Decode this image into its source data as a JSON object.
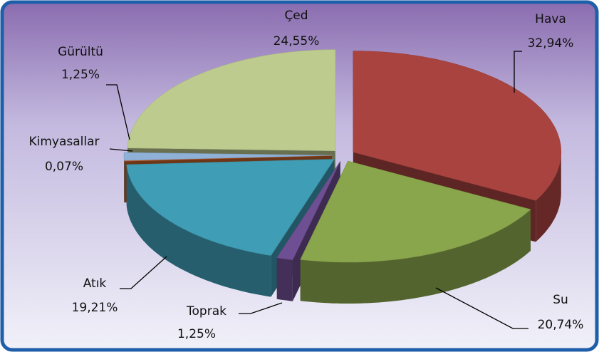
{
  "chart_data": {
    "type": "pie3d",
    "categories": [
      "Hava",
      "Su",
      "Toprak",
      "Atık",
      "Kimyasallar",
      "Gürültü",
      "Çed"
    ],
    "values": [
      32.94,
      20.74,
      1.25,
      19.21,
      0.07,
      1.25,
      24.55
    ],
    "value_labels": [
      "32,94%",
      "20,74%",
      "1,25%",
      "19,21%",
      "0,07%",
      "1,25%",
      "24,55%"
    ],
    "colors": [
      "#a9433f",
      "#8aa64c",
      "#6f4f93",
      "#3f9db5",
      "#c6622a",
      "#8fb1d8",
      "#bdcb8f"
    ]
  }
}
